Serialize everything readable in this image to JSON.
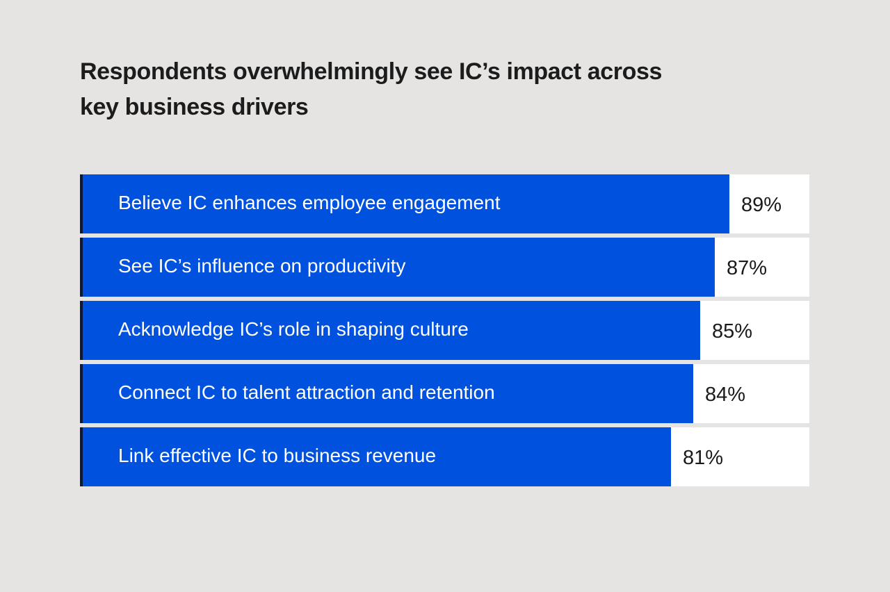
{
  "title": "Respondents overwhelmingly see IC’s impact across key business drivers",
  "colors": {
    "background": "#e5e4e2",
    "bar": "#0051de",
    "track": "#ffffff",
    "edge": "#0b1a3c"
  },
  "chart_data": {
    "type": "bar",
    "orientation": "horizontal",
    "title": "Respondents overwhelmingly see IC’s impact across key business drivers",
    "xlim": [
      0,
      100
    ],
    "unit": "%",
    "grid": false,
    "categories": [
      "Believe IC enhances employee engagement",
      "See IC’s influence on productivity",
      "Acknowledge IC’s role in shaping culture",
      "Connect IC to talent attraction and retention",
      "Link effective IC to business revenue"
    ],
    "values": [
      89,
      87,
      85,
      84,
      81
    ],
    "value_labels": [
      "89%",
      "87%",
      "85%",
      "84%",
      "81%"
    ]
  }
}
